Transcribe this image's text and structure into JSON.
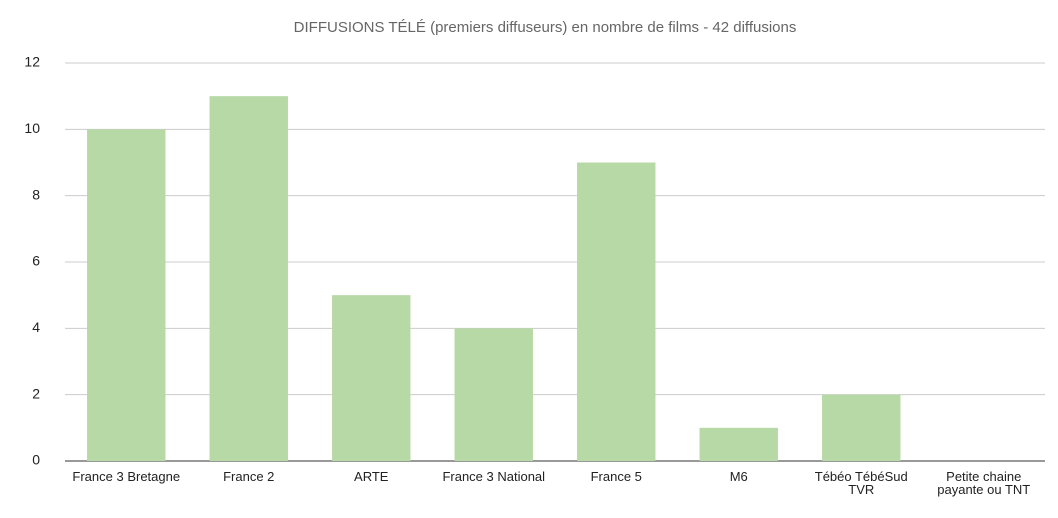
{
  "chart_data": {
    "type": "bar",
    "title": "DIFFUSIONS TÉLÉ (premiers diffuseurs) en nombre de films - 42 diffusions",
    "categories": [
      "France 3 Bretagne",
      "France 2",
      "ARTE",
      "France 3 National",
      "France 5",
      "M6",
      "Tébéo TébéSud TVR",
      "Petite chaine payante ou TNT"
    ],
    "values": [
      10,
      11,
      5,
      4,
      9,
      1,
      2,
      0
    ],
    "color": "#b7d9a6",
    "ylim": [
      0,
      12
    ],
    "yticks": [
      0,
      2,
      4,
      6,
      8,
      10,
      12
    ],
    "grid": true
  }
}
